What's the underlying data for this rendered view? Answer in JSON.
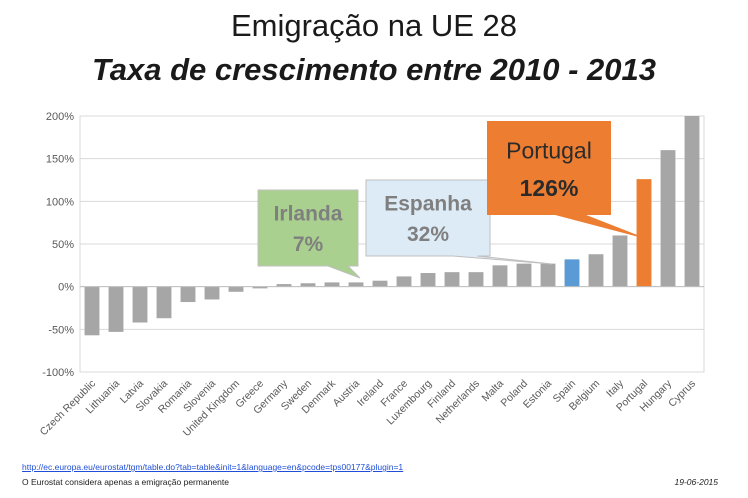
{
  "title": "Emigração na UE 28",
  "subtitle": "Taxa de crescimento entre 2010 - 2013",
  "chart_data": {
    "type": "bar",
    "categories": [
      "Czech Republic",
      "Lithuania",
      "Latvia",
      "Slovakia",
      "Romania",
      "Slovenia",
      "United Kingdom",
      "Greece",
      "Germany",
      "Sweden",
      "Denmark",
      "Austria",
      "Ireland",
      "France",
      "Luxembourg",
      "Finland",
      "Netherlands",
      "Malta",
      "Poland",
      "Estonia",
      "Spain",
      "Belgium",
      "Italy",
      "Portugal",
      "Hungary",
      "Cyprus"
    ],
    "values": [
      -57,
      -53,
      -42,
      -37,
      -18,
      -15,
      -6,
      -2,
      3,
      4,
      5,
      5,
      7,
      12,
      16,
      17,
      17,
      25,
      27,
      27,
      32,
      38,
      60,
      126,
      160,
      200
    ],
    "ylim": [
      -100,
      200
    ],
    "yticks": [
      -100,
      -50,
      0,
      50,
      100,
      150,
      200
    ],
    "ytick_labels": [
      "-100%",
      "-50%",
      "0%",
      "50%",
      "100%",
      "150%",
      "200%"
    ],
    "grid": true,
    "colors": {
      "default": "#a6a6a6",
      "Spain": "#5b9bd5",
      "Portugal": "#ed7d31"
    },
    "callouts": [
      {
        "country": "Ireland",
        "name": "Irlanda",
        "value": "7%",
        "fill": "#a9d08e",
        "text_color": "#7f7f7f"
      },
      {
        "country": "Spain",
        "name": "Espanha",
        "value": "32%",
        "fill": "#ddebf7",
        "text_color": "#7f7f7f"
      },
      {
        "country": "Portugal",
        "name": "Portugal",
        "value": "126%",
        "fill": "#ed7d31",
        "text_color": "#2b2b2b"
      }
    ]
  },
  "footer": {
    "link": "http://ec.europa.eu/eurostat/tgm/table.do?tab=table&init=1&language=en&pcode=tps00177&plugin=1",
    "note": "O Eurostat considera apenas a emigração permanente",
    "date": "19-06-2015"
  }
}
